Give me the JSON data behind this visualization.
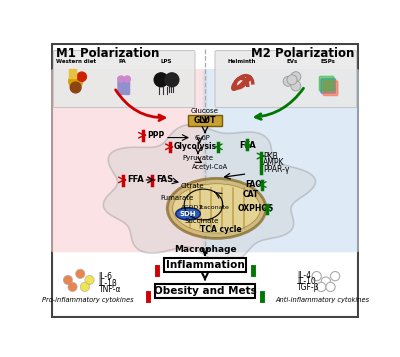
{
  "m1_label": "M1 Polarization",
  "m2_label": "M2 Polarization",
  "macrophage_label": "Macrophage",
  "tca_label": "TCA cycle",
  "inflammation_label": "Inflammation",
  "obesity_label": "Obesity and Mets",
  "pro_inflam_label": "Pro-inflammatory cytokines",
  "anti_inflam_label": "Anti-inflammatory cytokines",
  "left_cytokines": [
    "IL-6",
    "IL-1β",
    "TNF-α"
  ],
  "right_cytokines": [
    "IL-4",
    "IL-10",
    "TGF-β"
  ],
  "left_bg": "#f8d0d4",
  "right_bg": "#c8ddf0",
  "mito_color": "#c8a850",
  "mito_inner_color": "#e8d898",
  "sdh_color": "#2255bb",
  "red_arrow": "#cc0000",
  "green_arrow": "#007700",
  "fig_bg": "#ffffff",
  "border_color": "#444444",
  "glut_color": "#c8a030",
  "left_top_bg": "#e8e8e8",
  "right_top_bg": "#e8e8e8"
}
